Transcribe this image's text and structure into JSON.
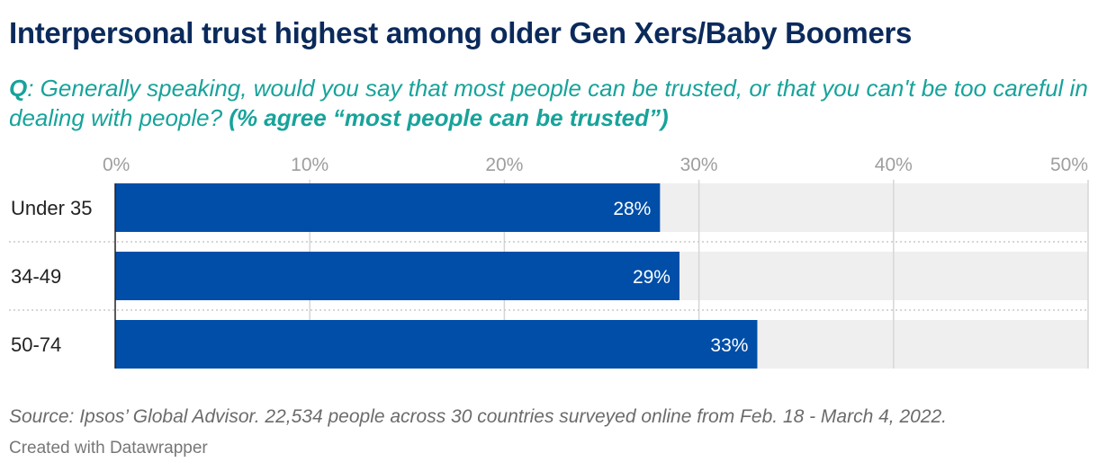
{
  "title": "Interpersonal trust highest among older Gen Xers/Baby Boomers",
  "question": {
    "prefix": "Q",
    "text": ": Generally speaking, would you say that most people can be trusted, or that you can't be too careful in dealing with people? ",
    "emphasis": "(% agree “most people can be trusted”)"
  },
  "chart_data": {
    "type": "bar",
    "orientation": "horizontal",
    "categories": [
      "Under 35",
      "34-49",
      "50-74"
    ],
    "values": [
      28,
      29,
      33
    ],
    "value_labels": [
      "28%",
      "29%",
      "33%"
    ],
    "xlim": [
      0,
      50
    ],
    "ticks": [
      0,
      10,
      20,
      30,
      40,
      50
    ],
    "tick_labels": [
      "0%",
      "10%",
      "20%",
      "30%",
      "40%",
      "50%"
    ],
    "grid": true,
    "colors": {
      "bar": "#004ea8",
      "track": "#efefef",
      "grid": "#d6d6d6",
      "tick_text": "#9e9e9e"
    }
  },
  "source": "Source: Ipsos’ Global Advisor. 22,534 people across 30 countries surveyed online from Feb. 18 - March 4, 2022.",
  "credit": "Created with Datawrapper"
}
